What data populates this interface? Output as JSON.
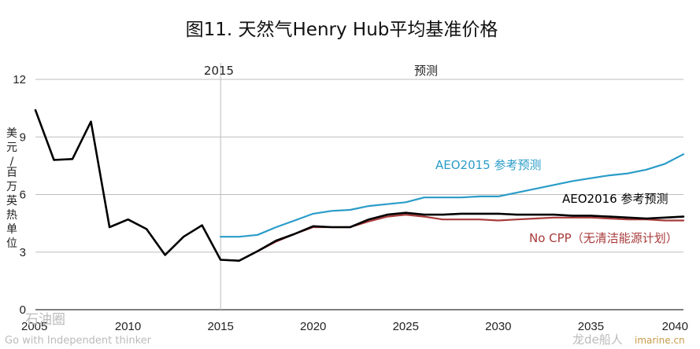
{
  "chart_data": {
    "type": "line",
    "title": "图11. 天然气Henry Hub平均基准价格",
    "ylabel": "美元/百万英热单位",
    "xlabel": "",
    "xlim": [
      2005,
      2040
    ],
    "ylim": [
      0,
      12
    ],
    "x_ticks": [
      "2005",
      "2010",
      "2015",
      "2020",
      "2025",
      "2030",
      "2035",
      "2040"
    ],
    "y_ticks": [
      "0",
      "3",
      "6",
      "9",
      "12"
    ],
    "grid": "horizontal",
    "divider_year": 2015,
    "annotations": {
      "divider_label": "2015",
      "forecast_label": "预测"
    },
    "series": [
      {
        "name": "AEO2015 参考预测",
        "color": "#2a9cc8",
        "x": [
          2015,
          2016,
          2017,
          2018,
          2019,
          2020,
          2021,
          2022,
          2023,
          2024,
          2025,
          2026,
          2027,
          2028,
          2029,
          2030,
          2031,
          2032,
          2033,
          2034,
          2035,
          2036,
          2037,
          2038,
          2039,
          2040
        ],
        "values": [
          3.8,
          3.8,
          3.9,
          4.3,
          4.65,
          5.0,
          5.15,
          5.2,
          5.4,
          5.5,
          5.6,
          5.85,
          5.85,
          5.85,
          5.9,
          5.9,
          6.1,
          6.3,
          6.5,
          6.7,
          6.85,
          7.0,
          7.1,
          7.3,
          7.6,
          8.1
        ]
      },
      {
        "name": "AEO2016 参考预测",
        "color": "#000000",
        "x": [
          2005,
          2006,
          2007,
          2008,
          2009,
          2010,
          2011,
          2012,
          2013,
          2014,
          2015,
          2016,
          2017,
          2018,
          2019,
          2020,
          2021,
          2022,
          2023,
          2024,
          2025,
          2026,
          2027,
          2028,
          2029,
          2030,
          2031,
          2032,
          2033,
          2034,
          2035,
          2036,
          2037,
          2038,
          2039,
          2040
        ],
        "values": [
          10.4,
          7.8,
          7.85,
          9.8,
          4.3,
          4.7,
          4.2,
          2.85,
          3.8,
          4.4,
          2.6,
          2.55,
          3.05,
          3.6,
          3.95,
          4.35,
          4.3,
          4.3,
          4.7,
          4.95,
          5.05,
          4.95,
          4.95,
          5.0,
          5.0,
          5.0,
          4.95,
          4.95,
          4.95,
          4.9,
          4.9,
          4.85,
          4.8,
          4.75,
          4.8,
          4.85
        ]
      },
      {
        "name": "No CPP（无清洁能源计划）",
        "color": "#a83a3a",
        "x": [
          2015,
          2016,
          2017,
          2018,
          2019,
          2020,
          2021,
          2022,
          2023,
          2024,
          2025,
          2026,
          2027,
          2028,
          2029,
          2030,
          2031,
          2032,
          2033,
          2034,
          2035,
          2036,
          2037,
          2038,
          2039,
          2040
        ],
        "values": [
          2.6,
          2.55,
          3.05,
          3.55,
          3.95,
          4.3,
          4.3,
          4.3,
          4.6,
          4.85,
          4.95,
          4.85,
          4.7,
          4.7,
          4.7,
          4.65,
          4.7,
          4.75,
          4.8,
          4.8,
          4.8,
          4.75,
          4.7,
          4.7,
          4.65,
          4.65
        ]
      }
    ]
  },
  "watermarks": {
    "left_top": "石油圈",
    "left_bottom": "Go with Independent thinker",
    "right_brand": "龙de船人",
    "right_url": "imarine.cn"
  }
}
